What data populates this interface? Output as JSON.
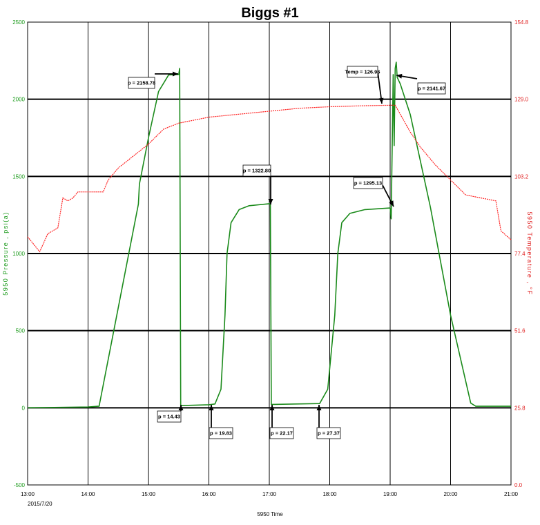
{
  "chart_data": {
    "type": "line",
    "title": "Biggs #1",
    "xlabel": "5950 Time",
    "date_label": "2015/7/20",
    "ylabel_left": "5950 Pressure , psi(a)",
    "ylabel_right": "5950 Temperature , °F",
    "x_ticks": [
      "13:00",
      "14:00",
      "15:00",
      "16:00",
      "17:00",
      "18:00",
      "19:00",
      "20:00",
      "21:00"
    ],
    "y_ticks_left": [
      -500,
      0,
      500,
      1000,
      1500,
      2000,
      2500
    ],
    "y_ticks_right": [
      "0.0",
      "25.8",
      "51.6",
      "77.4",
      "103.2",
      "129.0",
      "154.8"
    ],
    "xlim": [
      "13:00",
      "21:00"
    ],
    "ylim_left": [
      -500,
      2500
    ],
    "ylim_right": [
      0.0,
      154.8
    ],
    "grid": true,
    "colors": {
      "pressure": "#1a8a1a",
      "temperature": "#ff2020",
      "grid": "#000000"
    },
    "series": [
      {
        "axis": "left",
        "x": [
          "13:00",
          "14:00",
          "14:10",
          "14:11",
          "14:30",
          "14:50",
          "14:51",
          "15:00",
          "15:10",
          "15:20",
          "15:30",
          "15:31",
          "15:32",
          "15:34",
          "16:00",
          "16:06",
          "16:12",
          "16:16",
          "16:18",
          "16:22",
          "16:30",
          "16:40",
          "17:00",
          "17:01",
          "17:02",
          "17:04",
          "17:50",
          "17:58",
          "18:05",
          "18:08",
          "18:12",
          "18:20",
          "18:35",
          "19:00",
          "19:01",
          "19:03",
          "19:04",
          "19:05",
          "19:06",
          "19:07",
          "19:10",
          "19:20",
          "19:40",
          "20:00",
          "20:20",
          "20:25",
          "21:00"
        ],
        "y": [
          0,
          5,
          10,
          10,
          650,
          1320,
          1450,
          1750,
          2050,
          2158,
          2160,
          2200,
          14.43,
          14.43,
          19.83,
          25,
          120,
          600,
          1000,
          1200,
          1285,
          1310,
          1322.8,
          1322.8,
          22.17,
          22.17,
          27.37,
          120,
          600,
          1000,
          1200,
          1260,
          1285,
          1295.13,
          1225,
          2160,
          1700,
          2200,
          2240,
          2141.67,
          2100,
          1900,
          1300,
          600,
          30,
          10,
          10
        ]
      },
      {
        "axis": "right",
        "x": [
          "13:00",
          "13:12",
          "13:20",
          "13:30",
          "13:35",
          "13:40",
          "13:45",
          "13:50",
          "14:00",
          "14:15",
          "14:20",
          "14:30",
          "14:45",
          "15:00",
          "15:15",
          "15:30",
          "15:45",
          "16:00",
          "16:30",
          "17:00",
          "17:30",
          "18:00",
          "18:30",
          "18:55",
          "19:05",
          "19:10",
          "19:20",
          "19:30",
          "19:45",
          "20:00",
          "20:15",
          "20:30",
          "20:45",
          "20:50",
          "21:00"
        ],
        "y": [
          83,
          78,
          84,
          86,
          96,
          95,
          96,
          98,
          98,
          98,
          102,
          106,
          110,
          114,
          119,
          121,
          122,
          123,
          124,
          125,
          126,
          126.5,
          126.8,
          126.96,
          127,
          124,
          118,
          113,
          107,
          102,
          97,
          96,
          95,
          85,
          82
        ]
      }
    ],
    "annotations": [
      {
        "text": "p = 2158.78"
      },
      {
        "text": "Temp = 126.96"
      },
      {
        "text": "p = 2141.67"
      },
      {
        "text": "p = 1322.80"
      },
      {
        "text": "p = 1295.13"
      },
      {
        "text": "p = 14.43"
      },
      {
        "text": "p = 19.83"
      },
      {
        "text": "p = 22.17"
      },
      {
        "text": "p = 27.37"
      }
    ]
  }
}
